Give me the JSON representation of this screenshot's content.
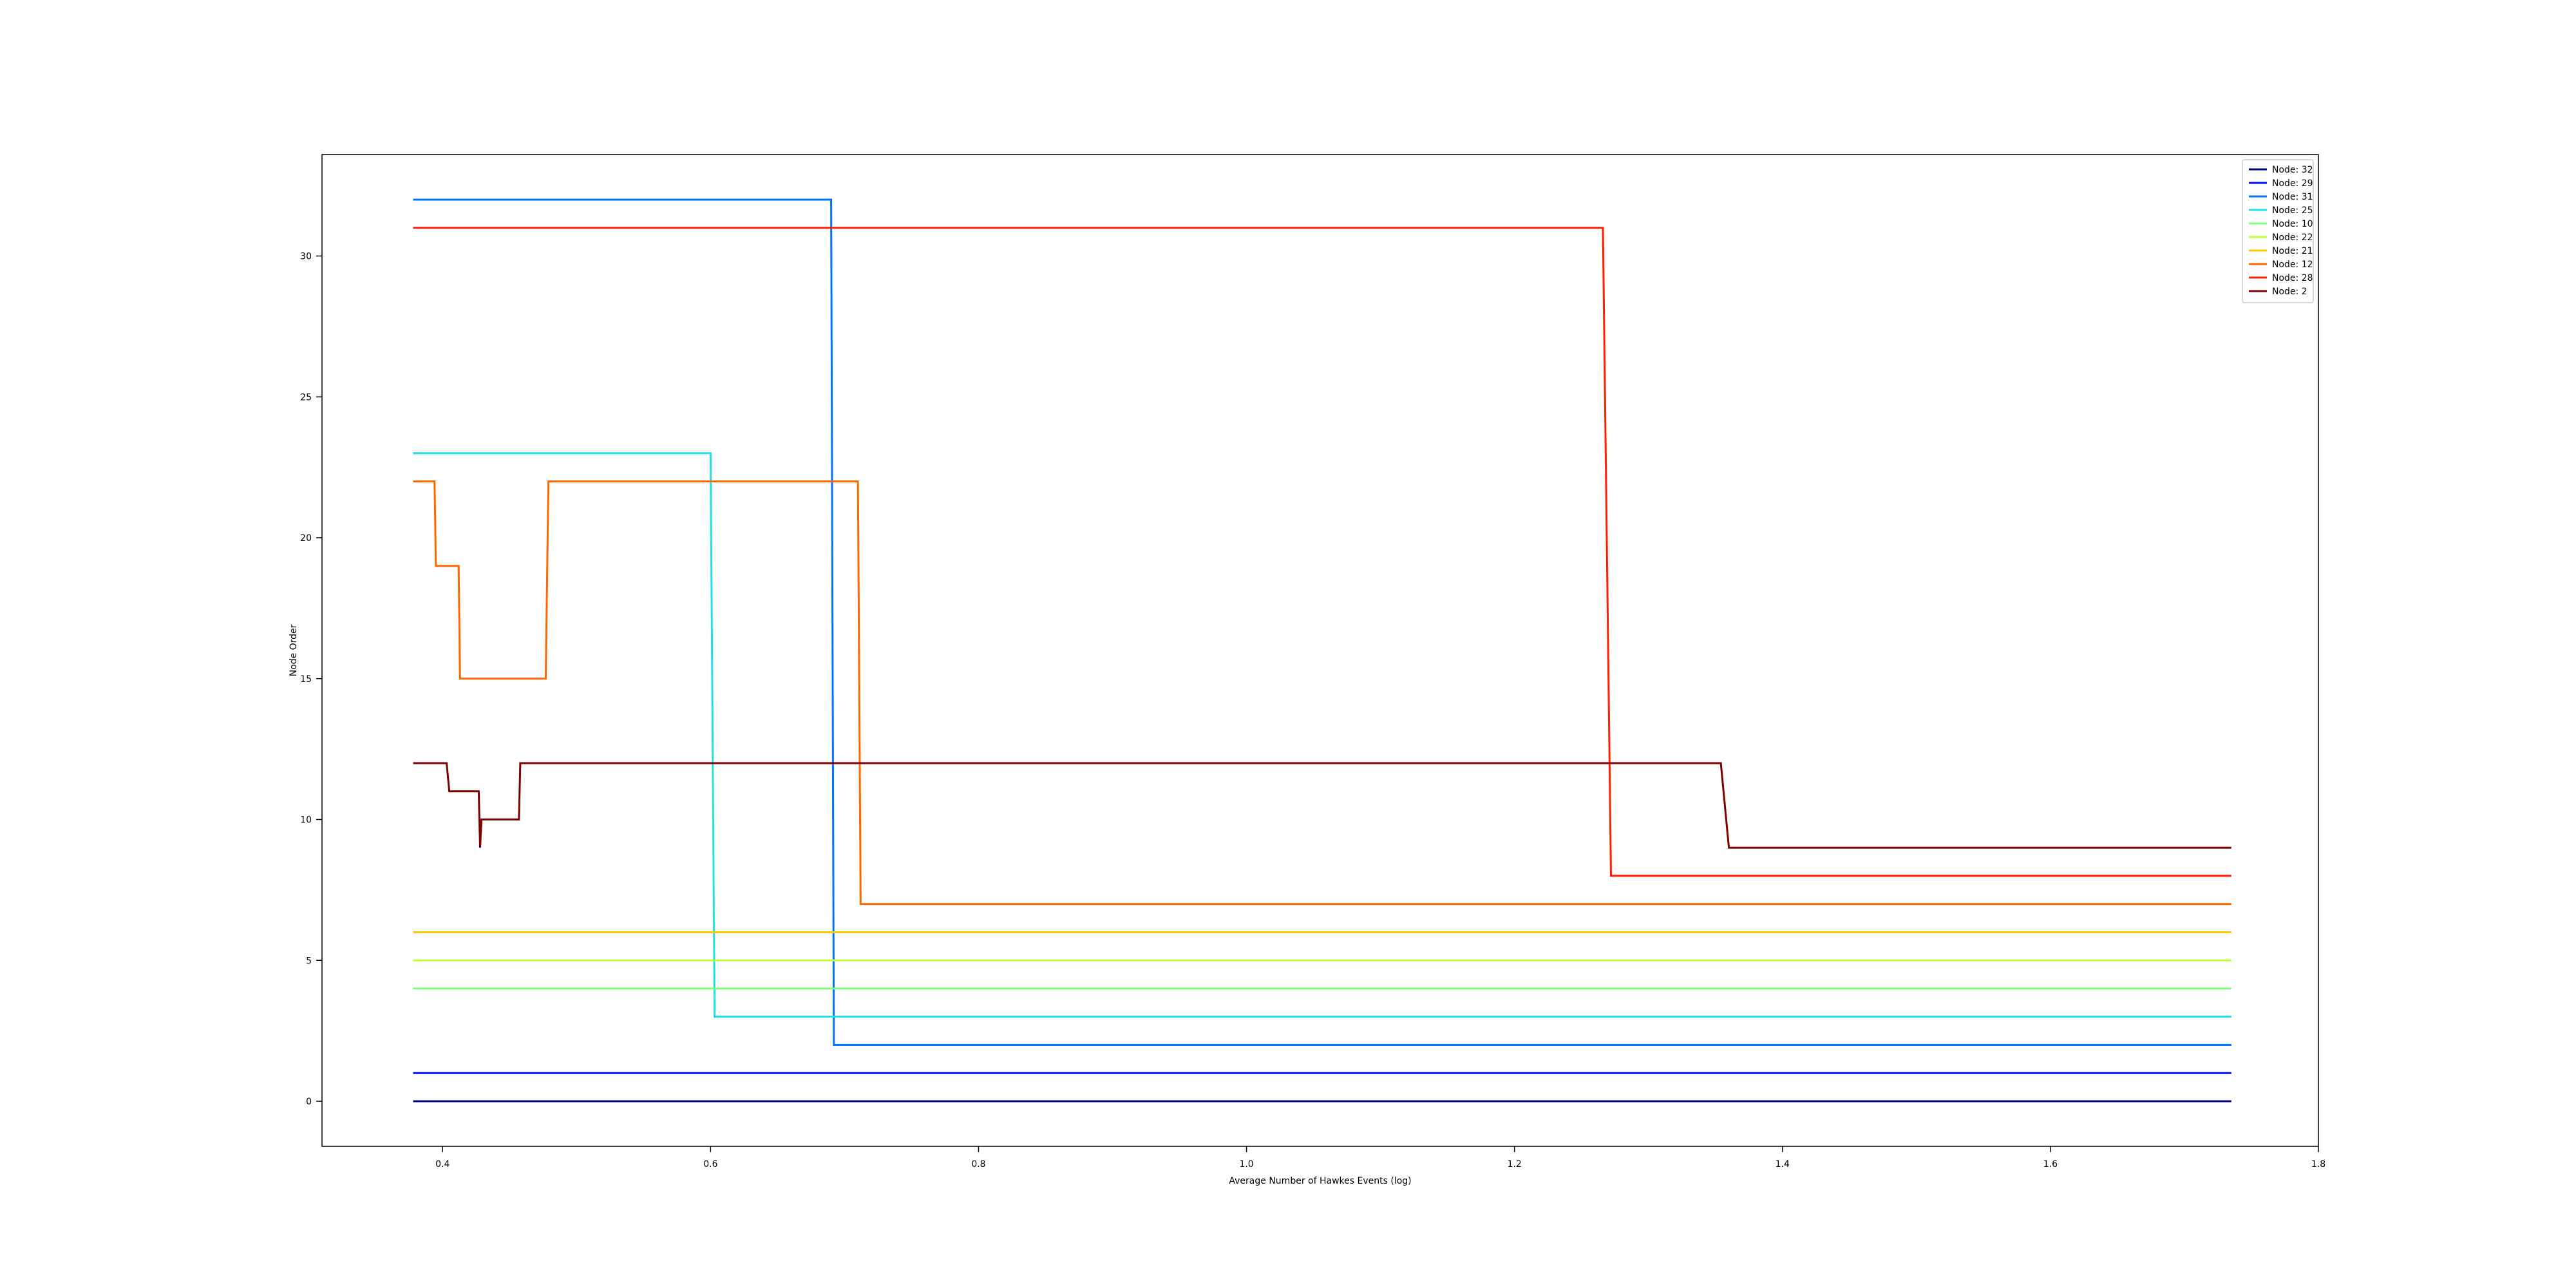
{
  "chart_data": {
    "type": "line",
    "step": true,
    "title": "",
    "xlabel": "Average Number of Hawkes Events (log)",
    "ylabel": "Node Order",
    "xlim": [
      0.31,
      1.8
    ],
    "ylim": [
      -1.6,
      33.6
    ],
    "x_ticks": [
      0.4,
      0.6,
      0.8,
      1.0,
      1.2,
      1.4,
      1.6,
      1.8
    ],
    "x_tick_labels": [
      "0.4",
      "0.6",
      "0.8",
      "1.0",
      "1.2",
      "1.4",
      "1.6",
      "1.8"
    ],
    "y_ticks": [
      0,
      5,
      10,
      15,
      20,
      25,
      30
    ],
    "y_tick_labels": [
      "0",
      "5",
      "10",
      "15",
      "20",
      "25",
      "30"
    ],
    "grid": false,
    "legend_position": "top-right",
    "series": [
      {
        "name": "Node: 32",
        "color": "#00007f",
        "points": [
          [
            0.378,
            0
          ],
          [
            1.735,
            0
          ]
        ]
      },
      {
        "name": "Node: 29",
        "color": "#0010ff",
        "points": [
          [
            0.378,
            1
          ],
          [
            1.735,
            1
          ]
        ]
      },
      {
        "name": "Node: 31",
        "color": "#0074ff",
        "points": [
          [
            0.378,
            32
          ],
          [
            0.69,
            32
          ],
          [
            0.692,
            2
          ],
          [
            1.735,
            2
          ]
        ]
      },
      {
        "name": "Node: 25",
        "color": "#1fe1e5",
        "points": [
          [
            0.378,
            23
          ],
          [
            0.6,
            23
          ],
          [
            0.603,
            3
          ],
          [
            1.735,
            3
          ]
        ]
      },
      {
        "name": "Node: 10",
        "color": "#7cff79",
        "points": [
          [
            0.378,
            4
          ],
          [
            1.735,
            4
          ]
        ]
      },
      {
        "name": "Node: 22",
        "color": "#c1ff37",
        "points": [
          [
            0.378,
            5
          ],
          [
            1.735,
            5
          ]
        ]
      },
      {
        "name": "Node: 21",
        "color": "#ffc800",
        "points": [
          [
            0.378,
            6
          ],
          [
            1.735,
            6
          ]
        ]
      },
      {
        "name": "Node: 12",
        "color": "#ff6700",
        "points": [
          [
            0.378,
            22
          ],
          [
            0.394,
            22
          ],
          [
            0.395,
            19
          ],
          [
            0.412,
            19
          ],
          [
            0.413,
            15
          ],
          [
            0.477,
            15
          ],
          [
            0.479,
            22
          ],
          [
            0.71,
            22
          ],
          [
            0.712,
            7
          ],
          [
            1.735,
            7
          ]
        ]
      },
      {
        "name": "Node: 28",
        "color": "#ff1e00",
        "points": [
          [
            0.378,
            31
          ],
          [
            1.266,
            31
          ],
          [
            1.272,
            8
          ],
          [
            1.735,
            8
          ]
        ]
      },
      {
        "name": "Node: 2",
        "color": "#7f0000",
        "points": [
          [
            0.378,
            12
          ],
          [
            0.403,
            12
          ],
          [
            0.405,
            11
          ],
          [
            0.427,
            11
          ],
          [
            0.428,
            9
          ],
          [
            0.429,
            10
          ],
          [
            0.457,
            10
          ],
          [
            0.458,
            12
          ],
          [
            1.354,
            12
          ],
          [
            1.36,
            9
          ],
          [
            1.735,
            9
          ]
        ]
      }
    ]
  }
}
